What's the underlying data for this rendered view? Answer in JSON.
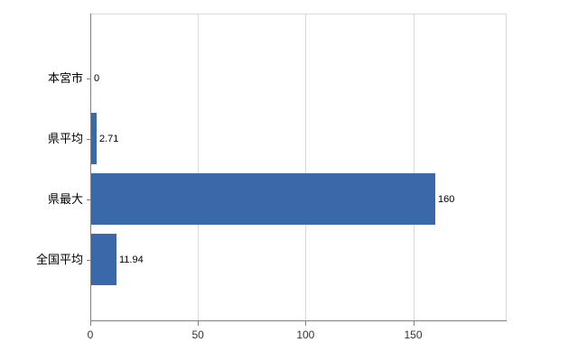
{
  "chart_data": {
    "type": "bar",
    "orientation": "horizontal",
    "title": "",
    "categories": [
      "本宮市",
      "県平均",
      "県最大",
      "全国平均"
    ],
    "values": [
      0,
      2.71,
      160,
      11.94
    ],
    "value_labels": [
      "0",
      "2.71",
      "160",
      "11.94"
    ],
    "x_ticks": [
      0,
      50,
      100,
      150
    ],
    "x_tick_labels": [
      "0",
      "50",
      "100",
      "150"
    ],
    "xlim": [
      0,
      193
    ],
    "grid": true,
    "legend": false,
    "bar_color": "#3a68a8",
    "grid_color": "#d9d9d9",
    "axis_color": "#808080",
    "background": "#ffffff"
  }
}
